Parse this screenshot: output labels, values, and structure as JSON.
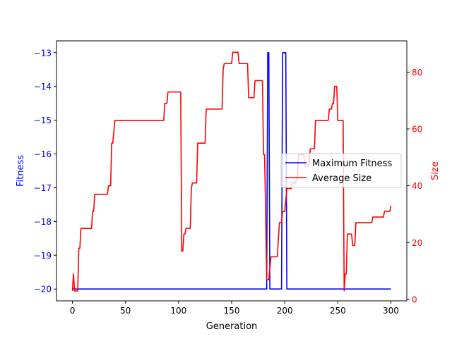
{
  "chart_data": {
    "type": "line",
    "title": "",
    "xlabel": "Generation",
    "ylabel_left": "Fitness",
    "ylabel_right": "Size",
    "xlim": [
      -15,
      315
    ],
    "ylim_left": [
      -20.35,
      -12.65
    ],
    "ylim_right": [
      -0.5,
      91
    ],
    "x_ticks": [
      0,
      50,
      100,
      150,
      200,
      250,
      300
    ],
    "y_left_ticks": [
      -20,
      -19,
      -18,
      -17,
      -16,
      -15,
      -14,
      -13
    ],
    "y_left_tick_labels": [
      "−20",
      "−19",
      "−18",
      "−17",
      "−16",
      "−15",
      "−14",
      "−13"
    ],
    "y_right_ticks": [
      0,
      20,
      40,
      60,
      80
    ],
    "colors": {
      "left_axis": "#0000ff",
      "right_axis": "#ff0000"
    },
    "legend_position": "center-right",
    "series": [
      {
        "name": "Maximum Fitness",
        "axis": "left",
        "color": "#0000ff",
        "points": [
          [
            0,
            -20
          ],
          [
            183,
            -20
          ],
          [
            184,
            -13
          ],
          [
            185,
            -13
          ],
          [
            186,
            -20
          ],
          [
            197,
            -20
          ],
          [
            198,
            -13
          ],
          [
            201,
            -13
          ],
          [
            202,
            -20
          ],
          [
            300,
            -20
          ]
        ]
      },
      {
        "name": "Average Size",
        "axis": "right",
        "color": "#ff0000",
        "points": [
          [
            0,
            3
          ],
          [
            1,
            9
          ],
          [
            2,
            3
          ],
          [
            5,
            3
          ],
          [
            6,
            18
          ],
          [
            7,
            18
          ],
          [
            8,
            25
          ],
          [
            18,
            25
          ],
          [
            19,
            31
          ],
          [
            20,
            31
          ],
          [
            21,
            37
          ],
          [
            33,
            37
          ],
          [
            34,
            40
          ],
          [
            36,
            40
          ],
          [
            37,
            55
          ],
          [
            38,
            55
          ],
          [
            40,
            63
          ],
          [
            86,
            63
          ],
          [
            87,
            69
          ],
          [
            89,
            69
          ],
          [
            90,
            73
          ],
          [
            102,
            73
          ],
          [
            103,
            17
          ],
          [
            104,
            17
          ],
          [
            105,
            23
          ],
          [
            106,
            23
          ],
          [
            107,
            25
          ],
          [
            111,
            25
          ],
          [
            112,
            39
          ],
          [
            113,
            41
          ],
          [
            117,
            41
          ],
          [
            118,
            55
          ],
          [
            125,
            55
          ],
          [
            126,
            67
          ],
          [
            141,
            67
          ],
          [
            142,
            81
          ],
          [
            143,
            83
          ],
          [
            150,
            83
          ],
          [
            151,
            87
          ],
          [
            156,
            87
          ],
          [
            157,
            83
          ],
          [
            165,
            83
          ],
          [
            166,
            71
          ],
          [
            171,
            71
          ],
          [
            172,
            77
          ],
          [
            179,
            77
          ],
          [
            180,
            51
          ],
          [
            181,
            51
          ],
          [
            182,
            31
          ],
          [
            183,
            7
          ],
          [
            185,
            7
          ],
          [
            187,
            15
          ],
          [
            193,
            15
          ],
          [
            195,
            27
          ],
          [
            197,
            27
          ],
          [
            198,
            31
          ],
          [
            200,
            31
          ],
          [
            202,
            39
          ],
          [
            206,
            39
          ],
          [
            207,
            41
          ],
          [
            210,
            41
          ],
          [
            212,
            43
          ],
          [
            213,
            51
          ],
          [
            218,
            51
          ],
          [
            219,
            47
          ],
          [
            223,
            47
          ],
          [
            224,
            53
          ],
          [
            228,
            53
          ],
          [
            229,
            63
          ],
          [
            241,
            63
          ],
          [
            242,
            67
          ],
          [
            244,
            67
          ],
          [
            245,
            69
          ],
          [
            246,
            69
          ],
          [
            247,
            75
          ],
          [
            249,
            75
          ],
          [
            250,
            63
          ],
          [
            255,
            63
          ],
          [
            256,
            3
          ],
          [
            257,
            9
          ],
          [
            258,
            9
          ],
          [
            259,
            23
          ],
          [
            263,
            23
          ],
          [
            264,
            19
          ],
          [
            266,
            19
          ],
          [
            267,
            27
          ],
          [
            282,
            27
          ],
          [
            283,
            29
          ],
          [
            293,
            29
          ],
          [
            294,
            31
          ],
          [
            299,
            31
          ],
          [
            300,
            33
          ]
        ]
      }
    ]
  }
}
